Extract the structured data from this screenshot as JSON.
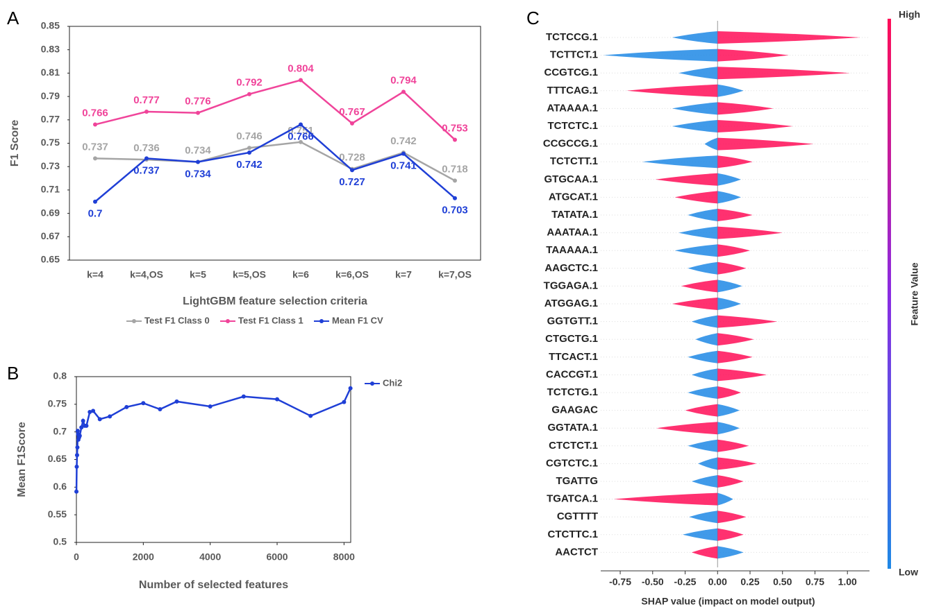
{
  "chart_data": [
    {
      "type": "line",
      "panel_label": "A",
      "xlabel": "LightGBM feature selection criteria",
      "ylabel": "F1  Score",
      "categories": [
        "k=4",
        "k=4,OS",
        "k=5",
        "k=5,OS",
        "k=6",
        "k=6,OS",
        "k=7",
        "k=7,OS"
      ],
      "series": [
        {
          "name": "Test F1 Class 0",
          "color": "#a5a5a5",
          "values": [
            0.737,
            0.736,
            0.734,
            0.746,
            0.751,
            0.728,
            0.742,
            0.718
          ]
        },
        {
          "name": "Test F1 Class 1",
          "color": "#f0449a",
          "values": [
            0.766,
            0.777,
            0.776,
            0.792,
            0.804,
            0.767,
            0.794,
            0.753
          ]
        },
        {
          "name": "Mean F1 CV",
          "color": "#1f3fd6",
          "values": [
            0.7,
            0.737,
            0.734,
            0.742,
            0.766,
            0.727,
            0.741,
            0.703
          ]
        }
      ],
      "ylim": [
        0.65,
        0.85
      ],
      "yticks": [
        0.65,
        0.67,
        0.69,
        0.71,
        0.73,
        0.75,
        0.77,
        0.79,
        0.81,
        0.83,
        0.85
      ],
      "legend": "bottom",
      "data_labels": true
    },
    {
      "type": "line",
      "panel_label": "B",
      "xlabel": "Number of selected features",
      "ylabel": "Mean F1Score",
      "x": [
        1,
        10,
        20,
        30,
        40,
        50,
        60,
        80,
        100,
        150,
        200,
        250,
        300,
        400,
        500,
        700,
        1000,
        1500,
        2000,
        2500,
        3000,
        4000,
        5000,
        6000,
        7000,
        8000,
        8192
      ],
      "series": [
        {
          "name": "Chi2",
          "color": "#1f3fd6",
          "values": [
            0.592,
            0.637,
            0.658,
            0.672,
            0.702,
            0.696,
            0.686,
            0.69,
            0.693,
            0.708,
            0.72,
            0.711,
            0.711,
            0.736,
            0.738,
            0.723,
            0.728,
            0.745,
            0.752,
            0.741,
            0.755,
            0.746,
            0.764,
            0.759,
            0.729,
            0.754,
            0.779
          ]
        }
      ],
      "xlim": [
        0,
        8200
      ],
      "xticks": [
        0,
        2000,
        4000,
        6000,
        8000
      ],
      "ylim": [
        0.5,
        0.8
      ],
      "yticks": [
        0.5,
        0.55,
        0.6,
        0.65,
        0.7,
        0.75,
        0.8
      ],
      "legend": "right"
    },
    {
      "type": "beeswarm",
      "panel_label": "C",
      "xlabel": "SHAP value (impact on model output)",
      "features": [
        "TCTCCG.1",
        "TCTTCT.1",
        "CCGTCG.1",
        "TTTCAG.1",
        "ATAAAA.1",
        "TCTCTC.1",
        "CCGCCG.1",
        "TCTCTT.1",
        "GTGCAA.1",
        "ATGCAT.1",
        "TATATA.1",
        "AAATAA.1",
        "TAAAAA.1",
        "AAGCTC.1",
        "TGGAGA.1",
        "ATGGAG.1",
        "GGTGTT.1",
        "CTGCTG.1",
        "TTCACT.1",
        "CACCGT.1",
        "TCTCTG.1",
        "GAAGAC",
        "GGTATA.1",
        "CTCTCT.1",
        "CGTCTC.1",
        "TGATTG",
        "TGATCA.1",
        "CGTTTT",
        "CTCTTC.1",
        "AACTCT"
      ],
      "low": [
        [
          -0.35,
          0
        ],
        [
          -0.88,
          0
        ],
        [
          -0.3,
          0
        ],
        [
          0,
          0.2
        ],
        [
          -0.35,
          0
        ],
        [
          -0.35,
          0
        ],
        [
          -0.1,
          0
        ],
        [
          -0.58,
          0
        ],
        [
          0,
          0.18
        ],
        [
          0,
          0.18
        ],
        [
          -0.23,
          0
        ],
        [
          -0.3,
          0
        ],
        [
          -0.33,
          0
        ],
        [
          -0.23,
          0
        ],
        [
          0,
          0.19
        ],
        [
          0,
          0.18
        ],
        [
          -0.2,
          0
        ],
        [
          -0.17,
          0
        ],
        [
          -0.23,
          0
        ],
        [
          -0.2,
          0
        ],
        [
          -0.23,
          0
        ],
        [
          0,
          0.17
        ],
        [
          0,
          0.17
        ],
        [
          -0.23,
          0
        ],
        [
          -0.15,
          0
        ],
        [
          -0.2,
          0
        ],
        [
          0,
          0.12
        ],
        [
          -0.22,
          0
        ],
        [
          -0.27,
          0
        ],
        [
          0,
          0.2
        ]
      ],
      "high": [
        [
          0,
          1.1
        ],
        [
          0,
          0.55
        ],
        [
          0,
          1.02
        ],
        [
          -0.7,
          0
        ],
        [
          0,
          0.43
        ],
        [
          0,
          0.58
        ],
        [
          0,
          0.74
        ],
        [
          0,
          0.27
        ],
        [
          -0.48,
          0
        ],
        [
          -0.33,
          0
        ],
        [
          0,
          0.27
        ],
        [
          0,
          0.5
        ],
        [
          0,
          0.25
        ],
        [
          0,
          0.22
        ],
        [
          -0.28,
          0
        ],
        [
          -0.35,
          0
        ],
        [
          0,
          0.46
        ],
        [
          0,
          0.28
        ],
        [
          0,
          0.27
        ],
        [
          0,
          0.38
        ],
        [
          0,
          0.18
        ],
        [
          -0.25,
          0
        ],
        [
          -0.47,
          0
        ],
        [
          0,
          0.24
        ],
        [
          0,
          0.3
        ],
        [
          0,
          0.2
        ],
        [
          -0.8,
          0
        ],
        [
          0,
          0.22
        ],
        [
          0,
          0.2
        ],
        [
          -0.2,
          0
        ]
      ],
      "low_color": "#1e88e5",
      "high_color": "#ff0d57",
      "xlim": [
        -0.9,
        1.17
      ],
      "xticks": [
        -0.75,
        {
          "value": -0.5,
          "label": "-0.50"
        },
        -0.25,
        {
          "value": 0,
          "label": "0.00"
        },
        0.25,
        {
          "value": 0.5,
          "label": "0.50"
        },
        0.75,
        {
          "value": 1,
          "label": "1.00"
        }
      ],
      "colorbar": {
        "label": "Feature Value",
        "high": "High",
        "low": "Low"
      }
    }
  ]
}
